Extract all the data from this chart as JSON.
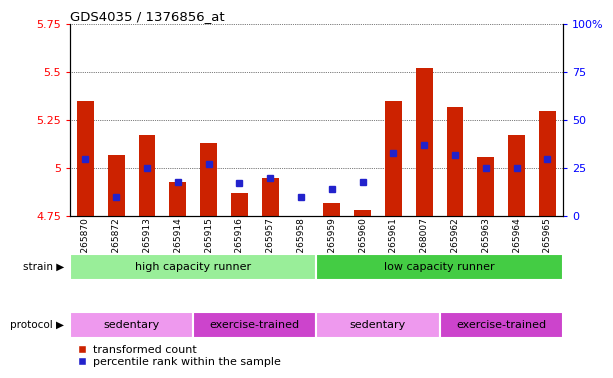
{
  "title": "GDS4035 / 1376856_at",
  "samples": [
    "GSM265870",
    "GSM265872",
    "GSM265913",
    "GSM265914",
    "GSM265915",
    "GSM265916",
    "GSM265957",
    "GSM265958",
    "GSM265959",
    "GSM265960",
    "GSM265961",
    "GSM268007",
    "GSM265962",
    "GSM265963",
    "GSM265964",
    "GSM265965"
  ],
  "red_values": [
    5.35,
    5.07,
    5.17,
    4.93,
    5.13,
    4.87,
    4.95,
    4.73,
    4.82,
    4.78,
    5.35,
    5.52,
    5.32,
    5.06,
    5.17,
    5.3
  ],
  "blue_percentile_vals": [
    30,
    10,
    25,
    18,
    27,
    17,
    20,
    10,
    14,
    18,
    33,
    37,
    32,
    25,
    25,
    30
  ],
  "ylim_left": [
    4.75,
    5.75
  ],
  "ylim_right": [
    0,
    100
  ],
  "yticks_left": [
    4.75,
    5.0,
    5.25,
    5.5,
    5.75
  ],
  "yticks_right": [
    0,
    25,
    50,
    75,
    100
  ],
  "yticklabels_left": [
    "4.75",
    "5",
    "5.25",
    "5.5",
    "5.75"
  ],
  "yticklabels_right": [
    "0",
    "25",
    "50",
    "75",
    "100%"
  ],
  "bar_bottom": 4.75,
  "red_color": "#cc2200",
  "blue_color": "#2222cc",
  "strain_groups": [
    {
      "label": "high capacity runner",
      "start": 0,
      "end": 8,
      "color": "#99ee99"
    },
    {
      "label": "low capacity runner",
      "start": 8,
      "end": 16,
      "color": "#44cc44"
    }
  ],
  "protocol_groups": [
    {
      "label": "sedentary",
      "start": 0,
      "end": 4,
      "color": "#ee99ee"
    },
    {
      "label": "exercise-trained",
      "start": 4,
      "end": 8,
      "color": "#cc44cc"
    },
    {
      "label": "sedentary",
      "start": 8,
      "end": 12,
      "color": "#ee99ee"
    },
    {
      "label": "exercise-trained",
      "start": 12,
      "end": 16,
      "color": "#cc44cc"
    }
  ],
  "legend_red_label": "transformed count",
  "legend_blue_label": "percentile rank within the sample",
  "bar_width": 0.55,
  "blue_marker_size": 4,
  "fig_width": 6.01,
  "fig_height": 3.84,
  "fig_dpi": 100
}
